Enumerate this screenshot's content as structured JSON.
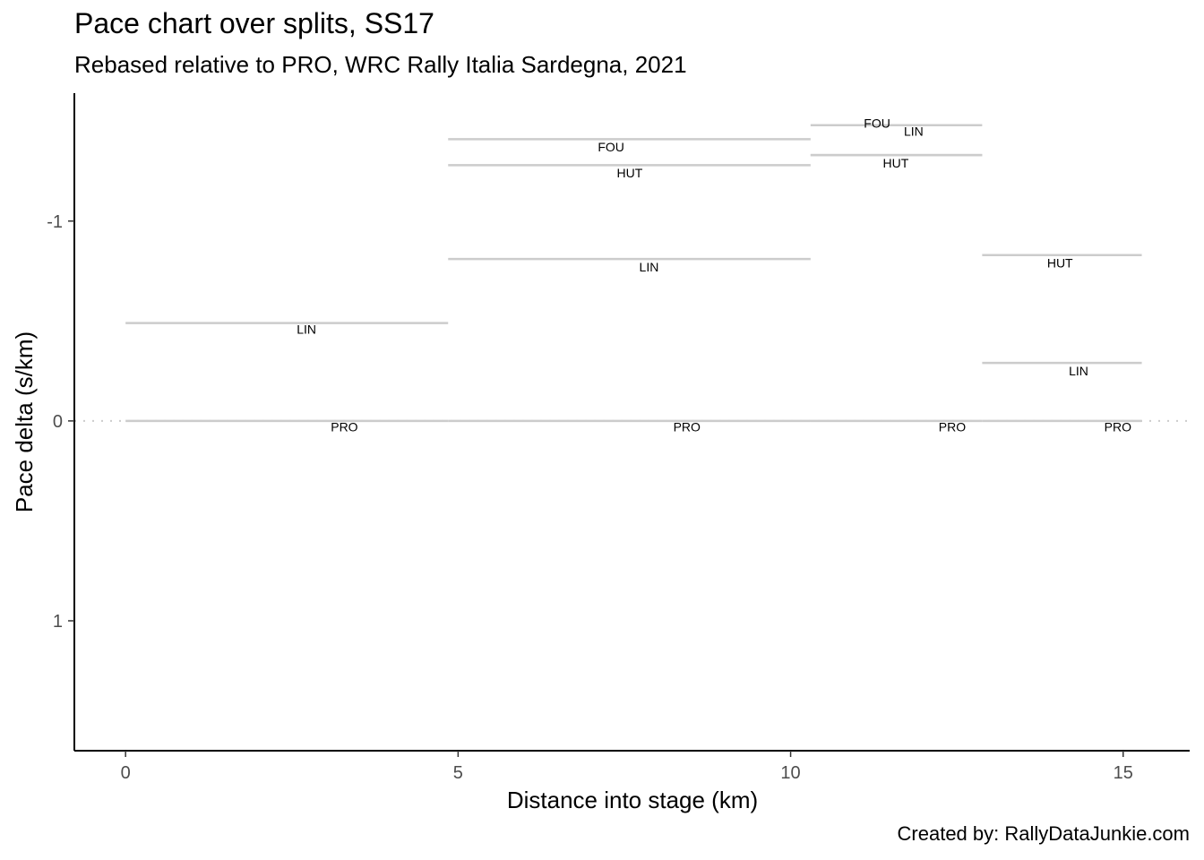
{
  "chart_data": {
    "type": "line",
    "title": "Pace chart over splits, SS17",
    "subtitle": "Rebased relative to PRO, WRC Rally Italia Sardegna, 2021",
    "caption": "Created by: RallyDataJunkie.com",
    "xlabel": "Distance into stage (km)",
    "ylabel": "Pace delta (s/km)",
    "xlim": [
      -0.77,
      16.0
    ],
    "ylim": [
      1.65,
      -1.64
    ],
    "y_reversed": true,
    "x_ticks": [
      0,
      5,
      10,
      15
    ],
    "x_tick_labels": [
      "0",
      "5",
      "10",
      "15"
    ],
    "y_ticks": [
      -1,
      0,
      1
    ],
    "y_tick_labels": [
      "-1",
      "0",
      "1"
    ],
    "reference_line": {
      "y": 0,
      "style": "dotted"
    },
    "segment_color": "#cccccc",
    "segments": [
      {
        "driver": "PRO",
        "x_start": 0.0,
        "x_end": 4.85,
        "y": 0.0
      },
      {
        "driver": "LIN",
        "x_start": 0.0,
        "x_end": 4.85,
        "y": -0.49
      },
      {
        "driver": "PRO",
        "x_start": 4.85,
        "x_end": 10.3,
        "y": 0.0
      },
      {
        "driver": "LIN",
        "x_start": 4.85,
        "x_end": 10.3,
        "y": -0.81
      },
      {
        "driver": "HUT",
        "x_start": 4.85,
        "x_end": 10.3,
        "y": -1.28
      },
      {
        "driver": "FOU",
        "x_start": 4.85,
        "x_end": 10.3,
        "y": -1.41
      },
      {
        "driver": "PRO",
        "x_start": 10.3,
        "x_end": 12.88,
        "y": 0.0
      },
      {
        "driver": "HUT",
        "x_start": 10.3,
        "x_end": 12.88,
        "y": -1.33
      },
      {
        "driver": "LIN",
        "x_start": 10.3,
        "x_end": 12.88,
        "y": -1.33
      },
      {
        "driver": "FOU",
        "x_start": 10.3,
        "x_end": 12.88,
        "y": -1.48
      },
      {
        "driver": "PRO",
        "x_start": 12.88,
        "x_end": 15.28,
        "y": 0.0
      },
      {
        "driver": "LIN",
        "x_start": 12.88,
        "x_end": 15.28,
        "y": -0.29
      },
      {
        "driver": "HUT",
        "x_start": 12.88,
        "x_end": 15.28,
        "y": -0.83
      }
    ],
    "labels": [
      {
        "text": "LIN",
        "x": 2.72,
        "y": -0.46
      },
      {
        "text": "PRO",
        "x": 3.29,
        "y": 0.03
      },
      {
        "text": "FOU",
        "x": 7.3,
        "y": -1.37
      },
      {
        "text": "HUT",
        "x": 7.58,
        "y": -1.24
      },
      {
        "text": "LIN",
        "x": 7.87,
        "y": -0.77
      },
      {
        "text": "PRO",
        "x": 8.44,
        "y": 0.03
      },
      {
        "text": "FOU",
        "x": 11.3,
        "y": -1.49
      },
      {
        "text": "LIN",
        "x": 11.85,
        "y": -1.45
      },
      {
        "text": "HUT",
        "x": 11.58,
        "y": -1.29
      },
      {
        "text": "PRO",
        "x": 12.43,
        "y": 0.03
      },
      {
        "text": "HUT",
        "x": 14.05,
        "y": -0.79
      },
      {
        "text": "LIN",
        "x": 14.33,
        "y": -0.25
      },
      {
        "text": "PRO",
        "x": 14.92,
        "y": 0.03
      }
    ]
  }
}
